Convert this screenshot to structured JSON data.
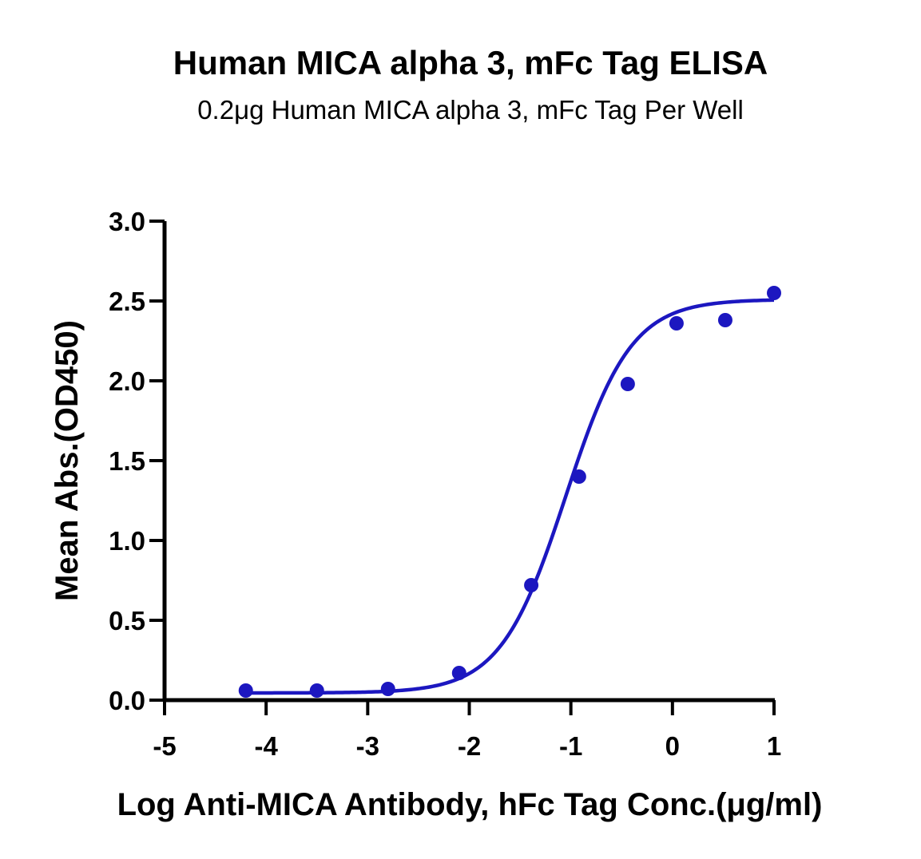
{
  "chart_data": {
    "type": "scatter",
    "title": "Human MICA alpha 3, mFc Tag ELISA",
    "subtitle": "0.2μg Human MICA alpha 3, mFc Tag Per Well",
    "xlabel": "Log Anti-MICA Antibody, hFc Tag Conc.(μg/ml)",
    "ylabel": "Mean Abs.(OD450)",
    "xlim": [
      -5,
      1
    ],
    "ylim": [
      0,
      3
    ],
    "x_ticks": [
      -5,
      -4,
      -3,
      -2,
      -1,
      0,
      1
    ],
    "x_tick_labels": [
      "-5",
      "-4",
      "-3",
      "-2",
      "-1",
      "0",
      "1"
    ],
    "y_ticks": [
      0,
      0.5,
      1,
      1.5,
      2,
      2.5,
      3
    ],
    "y_tick_labels": [
      "0.0",
      "0.5",
      "1.0",
      "1.5",
      "2.0",
      "2.5",
      "3.0"
    ],
    "grid": false,
    "series": [
      {
        "points": [
          {
            "x": -4.2,
            "y": 0.06
          },
          {
            "x": -3.5,
            "y": 0.06
          },
          {
            "x": -2.8,
            "y": 0.07
          },
          {
            "x": -2.1,
            "y": 0.17
          },
          {
            "x": -1.39,
            "y": 0.72
          },
          {
            "x": -0.92,
            "y": 1.4
          },
          {
            "x": -0.44,
            "y": 1.98
          },
          {
            "x": 0.04,
            "y": 2.36
          },
          {
            "x": 0.52,
            "y": 2.38
          },
          {
            "x": 1.0,
            "y": 2.55
          }
        ],
        "fit": {
          "model": "4PL",
          "bottom": 0.045,
          "top": 2.51,
          "logEC50": -1.05,
          "hill": 1.35
        }
      }
    ],
    "colors": {
      "series": "#1c17c0",
      "axis": "#000000",
      "background": "#ffffff"
    }
  }
}
